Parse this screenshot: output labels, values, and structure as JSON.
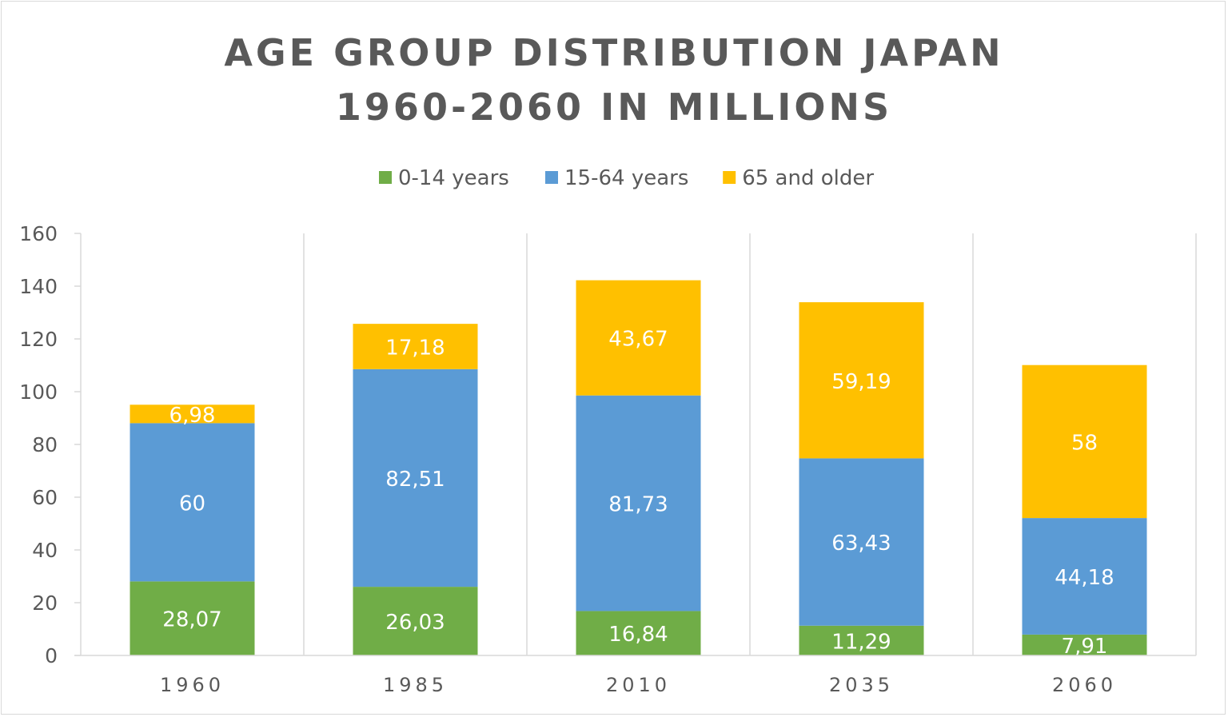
{
  "chart_data": {
    "type": "bar",
    "stacked": true,
    "title_lines": [
      "AGE GROUP DISTRIBUTION JAPAN",
      "1960-2060 IN MILLIONS"
    ],
    "xlabel": "",
    "ylabel": "",
    "ylim": [
      0,
      160
    ],
    "yticks": [
      0,
      20,
      40,
      60,
      80,
      100,
      120,
      140,
      160
    ],
    "categories": [
      "1960",
      "1985",
      "2010",
      "2035",
      "2060"
    ],
    "series": [
      {
        "name": "0-14 years",
        "color": "#70AD47",
        "values": [
          28.07,
          26.03,
          16.84,
          11.29,
          7.91
        ],
        "labels": [
          "28,07",
          "26,03",
          "16,84",
          "11,29",
          "7,91"
        ]
      },
      {
        "name": "15-64 years",
        "color": "#5B9BD5",
        "values": [
          60,
          82.51,
          81.73,
          63.43,
          44.18
        ],
        "labels": [
          "60",
          "82,51",
          "81,73",
          "63,43",
          "44,18"
        ]
      },
      {
        "name": "65 and older",
        "color": "#FFC000",
        "values": [
          6.98,
          17.18,
          43.67,
          59.19,
          58
        ],
        "labels": [
          "6,98",
          "17,18",
          "43,67",
          "59,19",
          "58"
        ]
      }
    ],
    "legend_position": "top",
    "grid": "vertical category separators"
  }
}
